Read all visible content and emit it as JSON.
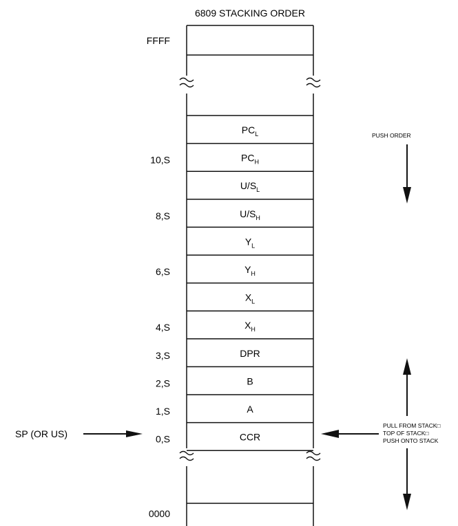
{
  "title": "6809 STACKING ORDER",
  "top_address": "FFFF",
  "bottom_address": "0000",
  "registers": [
    {
      "base": "PC",
      "sub": "L",
      "offset": ""
    },
    {
      "base": "PC",
      "sub": "H",
      "offset": "10,S"
    },
    {
      "base": "U/S",
      "sub": "L",
      "offset": ""
    },
    {
      "base": "U/S",
      "sub": "H",
      "offset": "8,S"
    },
    {
      "base": "Y",
      "sub": "L",
      "offset": ""
    },
    {
      "base": "Y",
      "sub": "H",
      "offset": "6,S"
    },
    {
      "base": "X",
      "sub": "L",
      "offset": ""
    },
    {
      "base": "X",
      "sub": "H",
      "offset": "4,S"
    },
    {
      "base": "DPR",
      "sub": "",
      "offset": "3,S"
    },
    {
      "base": "B",
      "sub": "",
      "offset": "2,S"
    },
    {
      "base": "A",
      "sub": "",
      "offset": "1,S"
    },
    {
      "base": "CCR",
      "sub": "",
      "offset": "0,S"
    }
  ],
  "push_order_label": "PUSH ORDER",
  "sp_label": "SP (OR US)",
  "pull_push_lines": [
    "PULL FROM STACK□",
    "TOP OF STACK□",
    "PUSH ONTO STACK"
  ],
  "colors": {
    "line": "#111111",
    "background": "#ffffff"
  }
}
